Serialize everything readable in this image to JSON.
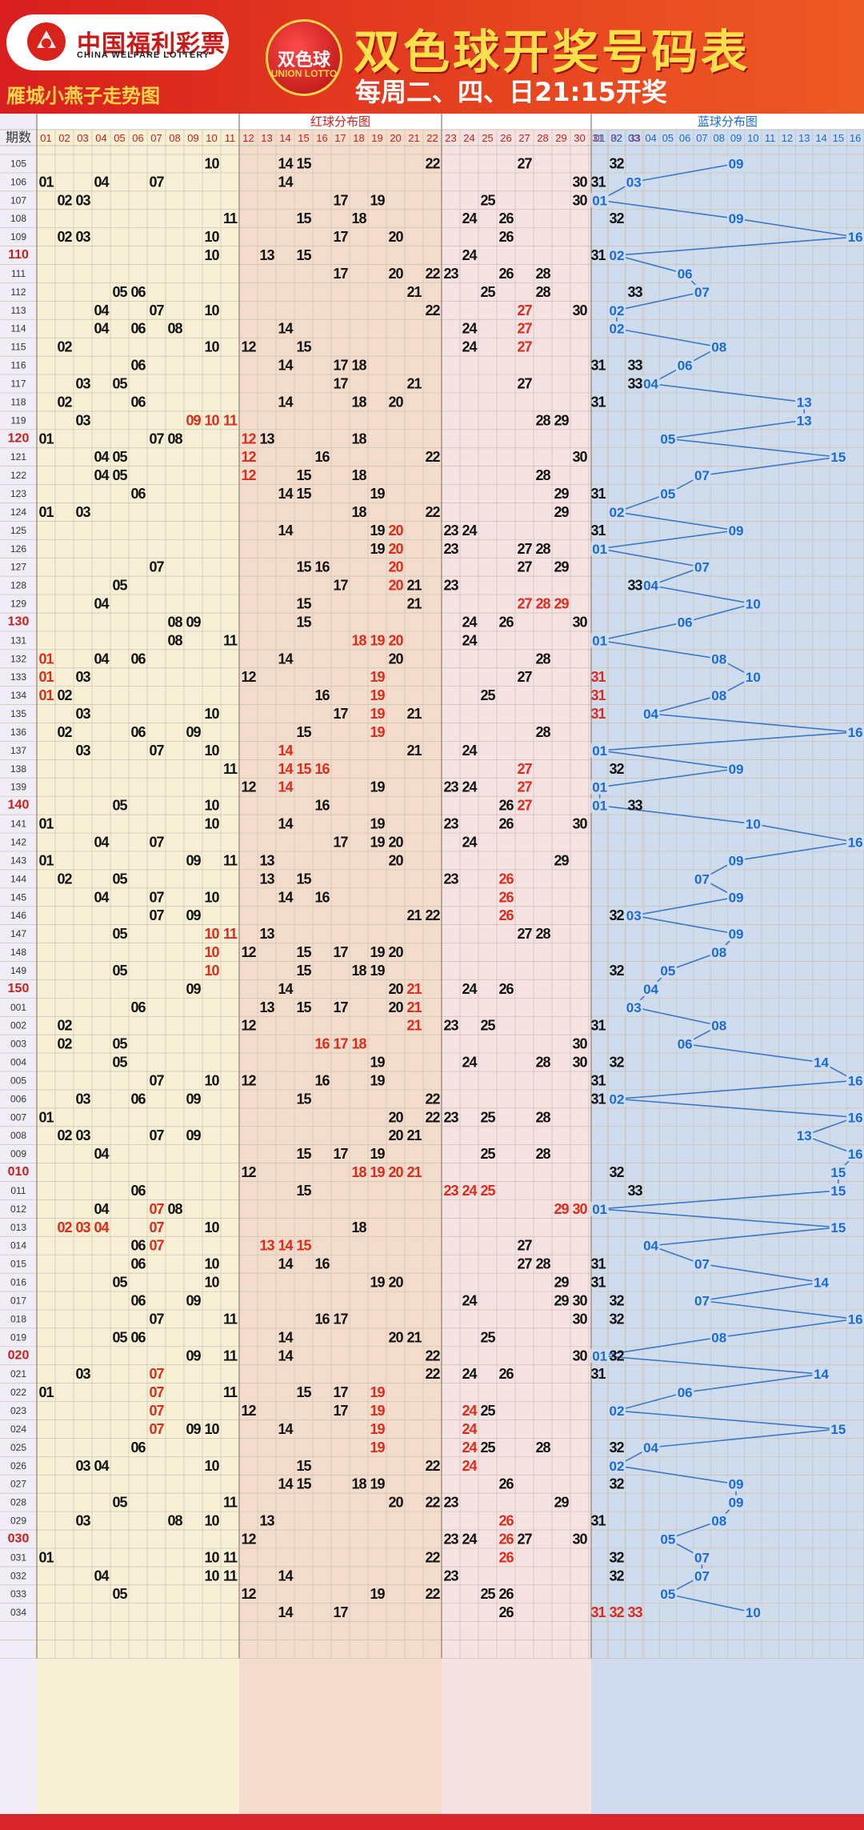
{
  "header": {
    "brand_cn": "中国福利彩票",
    "brand_en": "CHINA WELFARE LOTTERY",
    "chart_author": "雁城小燕子走势图",
    "badge_cn": "双色球",
    "badge_en": "UNION LOTTO",
    "title": "双色球开奖号码表",
    "draw_days": "每周二、四、日21:15开奖"
  },
  "colors": {
    "header_red": "#d81e1e",
    "title_yellow": "#ffe04a",
    "red_zone_1": "#f8f0d4",
    "red_zone_2": "#f4dccc",
    "red_zone_3": "#f6e2e2",
    "blue_zone": "#cfdcee",
    "repeat_red": "#e02a1a",
    "blue_ball": "#1a6bd6"
  },
  "chart_data": {
    "type": "table",
    "period_header": "期数",
    "red_section_title": "红球分布图",
    "blue_section_title": "蓝球分布图",
    "red_columns": [
      "01",
      "02",
      "03",
      "04",
      "05",
      "06",
      "07",
      "08",
      "09",
      "10",
      "11",
      "12",
      "13",
      "14",
      "15",
      "16",
      "17",
      "18",
      "19",
      "20",
      "21",
      "22",
      "23",
      "24",
      "25",
      "26",
      "27",
      "28",
      "29",
      "30",
      "31",
      "32",
      "33"
    ],
    "blue_columns": [
      "01",
      "02",
      "03",
      "04",
      "05",
      "06",
      "07",
      "08",
      "09",
      "10",
      "11",
      "12",
      "13",
      "14",
      "15",
      "16"
    ],
    "draws": [
      {
        "p": "105",
        "red": [
          10,
          14,
          15,
          22,
          27,
          32
        ],
        "hl": [],
        "blue": 9
      },
      {
        "p": "106",
        "red": [
          1,
          4,
          7,
          14,
          30,
          31
        ],
        "hl": [],
        "blue": 3
      },
      {
        "p": "107",
        "red": [
          2,
          3,
          17,
          19,
          25,
          30
        ],
        "hl": [],
        "blue": 1
      },
      {
        "p": "108",
        "red": [
          11,
          15,
          18,
          24,
          26,
          32
        ],
        "hl": [],
        "blue": 9
      },
      {
        "p": "109",
        "red": [
          2,
          3,
          10,
          17,
          20,
          26
        ],
        "hl": [],
        "blue": 16
      },
      {
        "p": "110",
        "red": [
          10,
          13,
          15,
          24,
          31,
          32
        ],
        "hl": [],
        "blue": 2
      },
      {
        "p": "111",
        "red": [
          17,
          20,
          22,
          23,
          26,
          28
        ],
        "hl": [],
        "blue": 6
      },
      {
        "p": "112",
        "red": [
          5,
          6,
          21,
          25,
          28,
          33
        ],
        "hl": [],
        "blue": 7
      },
      {
        "p": "113",
        "red": [
          4,
          7,
          10,
          22,
          27,
          30
        ],
        "hl": [
          27
        ],
        "blue": 2
      },
      {
        "p": "114",
        "red": [
          4,
          6,
          8,
          14,
          24,
          27
        ],
        "hl": [
          27
        ],
        "blue": 2
      },
      {
        "p": "115",
        "red": [
          2,
          10,
          12,
          15,
          24,
          27
        ],
        "hl": [
          27
        ],
        "blue": 8
      },
      {
        "p": "116",
        "red": [
          6,
          14,
          17,
          18,
          31,
          33
        ],
        "hl": [],
        "blue": 6
      },
      {
        "p": "117",
        "red": [
          3,
          5,
          17,
          21,
          27,
          33
        ],
        "hl": [],
        "blue": 4
      },
      {
        "p": "118",
        "red": [
          2,
          6,
          14,
          18,
          20,
          31
        ],
        "hl": [],
        "blue": 13
      },
      {
        "p": "119",
        "red": [
          3,
          9,
          10,
          11,
          28,
          29
        ],
        "hl": [
          9,
          10,
          11
        ],
        "blue": 13
      },
      {
        "p": "120",
        "red": [
          1,
          7,
          8,
          12,
          13,
          18
        ],
        "hl": [
          12
        ],
        "blue": 5
      },
      {
        "p": "121",
        "red": [
          4,
          5,
          12,
          16,
          22,
          30
        ],
        "hl": [
          12
        ],
        "blue": 15
      },
      {
        "p": "122",
        "red": [
          4,
          5,
          12,
          15,
          18,
          28
        ],
        "hl": [
          12
        ],
        "blue": 7
      },
      {
        "p": "123",
        "red": [
          6,
          14,
          15,
          19,
          29,
          31
        ],
        "hl": [],
        "blue": 5
      },
      {
        "p": "124",
        "red": [
          1,
          3,
          18,
          22,
          29,
          32
        ],
        "hl": [],
        "blue": 2
      },
      {
        "p": "125",
        "red": [
          14,
          19,
          20,
          23,
          24,
          31
        ],
        "hl": [
          20
        ],
        "blue": 9
      },
      {
        "p": "126",
        "red": [
          19,
          20,
          23,
          27,
          28,
          31
        ],
        "hl": [
          20
        ],
        "blue": 1
      },
      {
        "p": "127",
        "red": [
          7,
          15,
          16,
          20,
          27,
          29
        ],
        "hl": [
          20
        ],
        "blue": 7
      },
      {
        "p": "128",
        "red": [
          5,
          17,
          20,
          21,
          23,
          33
        ],
        "hl": [
          20
        ],
        "blue": 4
      },
      {
        "p": "129",
        "red": [
          4,
          15,
          21,
          27,
          28,
          29
        ],
        "hl": [
          27,
          28,
          29
        ],
        "blue": 10
      },
      {
        "p": "130",
        "red": [
          8,
          9,
          15,
          24,
          26,
          30
        ],
        "hl": [],
        "blue": 6
      },
      {
        "p": "131",
        "red": [
          8,
          11,
          18,
          19,
          20,
          24
        ],
        "hl": [
          18,
          19,
          20
        ],
        "blue": 1
      },
      {
        "p": "132",
        "red": [
          1,
          4,
          6,
          14,
          20,
          28
        ],
        "hl": [
          1
        ],
        "blue": 8
      },
      {
        "p": "133",
        "red": [
          1,
          3,
          12,
          19,
          27,
          31
        ],
        "hl": [
          1,
          19,
          31
        ],
        "blue": 10
      },
      {
        "p": "134",
        "red": [
          1,
          2,
          16,
          19,
          25,
          31
        ],
        "hl": [
          1,
          19,
          31
        ],
        "blue": 8
      },
      {
        "p": "135",
        "red": [
          3,
          10,
          17,
          19,
          21,
          31
        ],
        "hl": [
          19,
          31
        ],
        "blue": 4
      },
      {
        "p": "136",
        "red": [
          2,
          6,
          9,
          15,
          19,
          28
        ],
        "hl": [
          19
        ],
        "blue": 16
      },
      {
        "p": "137",
        "red": [
          3,
          7,
          10,
          14,
          21,
          24
        ],
        "hl": [
          14
        ],
        "blue": 1
      },
      {
        "p": "138",
        "red": [
          11,
          14,
          15,
          16,
          27,
          32
        ],
        "hl": [
          14,
          15,
          16,
          27
        ],
        "blue": 9
      },
      {
        "p": "139",
        "red": [
          12,
          14,
          19,
          23,
          24,
          27
        ],
        "hl": [
          14,
          27
        ],
        "blue": 1
      },
      {
        "p": "140",
        "red": [
          5,
          10,
          16,
          26,
          27,
          33
        ],
        "hl": [
          27
        ],
        "blue": 1
      },
      {
        "p": "141",
        "red": [
          1,
          10,
          14,
          19,
          23,
          26,
          30
        ],
        "hl": [],
        "blue": 10
      },
      {
        "p": "142",
        "red": [
          4,
          7,
          17,
          19,
          20,
          24
        ],
        "hl": [],
        "blue": 16
      },
      {
        "p": "143",
        "red": [
          1,
          9,
          11,
          13,
          20,
          29
        ],
        "hl": [],
        "blue": 9
      },
      {
        "p": "144",
        "red": [
          2,
          5,
          13,
          15,
          23,
          26
        ],
        "hl": [
          26
        ],
        "blue": 7
      },
      {
        "p": "145",
        "red": [
          4,
          7,
          10,
          14,
          16,
          26
        ],
        "hl": [
          26
        ],
        "blue": 9
      },
      {
        "p": "146",
        "red": [
          7,
          9,
          21,
          22,
          26,
          32
        ],
        "hl": [
          26
        ],
        "blue": 3
      },
      {
        "p": "147",
        "red": [
          5,
          10,
          11,
          13,
          27,
          28
        ],
        "hl": [
          10,
          11
        ],
        "blue": 9
      },
      {
        "p": "148",
        "red": [
          10,
          12,
          15,
          17,
          19,
          20
        ],
        "hl": [
          10
        ],
        "blue": 8
      },
      {
        "p": "149",
        "red": [
          5,
          10,
          15,
          18,
          19,
          32
        ],
        "hl": [
          10
        ],
        "blue": 5
      },
      {
        "p": "150",
        "red": [
          9,
          14,
          20,
          21,
          24,
          26
        ],
        "hl": [
          21
        ],
        "blue": 4
      },
      {
        "p": "001",
        "red": [
          6,
          13,
          15,
          17,
          20,
          21
        ],
        "hl": [
          21
        ],
        "blue": 3
      },
      {
        "p": "002",
        "red": [
          2,
          12,
          21,
          23,
          25,
          31
        ],
        "hl": [
          21
        ],
        "blue": 8
      },
      {
        "p": "003",
        "red": [
          2,
          5,
          16,
          17,
          18,
          30
        ],
        "hl": [
          16,
          17,
          18
        ],
        "blue": 6
      },
      {
        "p": "004",
        "red": [
          5,
          19,
          24,
          28,
          30,
          32
        ],
        "hl": [],
        "blue": 14
      },
      {
        "p": "005",
        "red": [
          7,
          10,
          12,
          16,
          19,
          31
        ],
        "hl": [],
        "blue": 16
      },
      {
        "p": "006",
        "red": [
          3,
          6,
          9,
          15,
          22,
          31
        ],
        "hl": [],
        "blue": 2
      },
      {
        "p": "007",
        "red": [
          1,
          20,
          22,
          23,
          25,
          28
        ],
        "hl": [],
        "blue": 16
      },
      {
        "p": "008",
        "red": [
          2,
          3,
          7,
          9,
          20,
          21
        ],
        "hl": [],
        "blue": 13
      },
      {
        "p": "009",
        "red": [
          4,
          15,
          17,
          19,
          25,
          28
        ],
        "hl": [],
        "blue": 16
      },
      {
        "p": "010",
        "red": [
          12,
          18,
          19,
          20,
          21,
          32
        ],
        "hl": [
          18,
          19,
          20,
          21
        ],
        "blue": 15
      },
      {
        "p": "011",
        "red": [
          6,
          15,
          23,
          24,
          25,
          33
        ],
        "hl": [
          23,
          24,
          25
        ],
        "blue": 15
      },
      {
        "p": "012",
        "red": [
          4,
          7,
          8,
          29,
          30,
          31
        ],
        "hl": [
          7,
          29,
          30,
          31
        ],
        "blue": 1
      },
      {
        "p": "013",
        "red": [
          2,
          3,
          4,
          7,
          10,
          18
        ],
        "hl": [
          2,
          3,
          4,
          7
        ],
        "blue": 15
      },
      {
        "p": "014",
        "red": [
          6,
          7,
          13,
          14,
          15,
          27
        ],
        "hl": [
          7,
          13,
          14,
          15
        ],
        "blue": 4
      },
      {
        "p": "015",
        "red": [
          6,
          10,
          14,
          16,
          27,
          28,
          31
        ],
        "hl": [],
        "blue": 7
      },
      {
        "p": "016",
        "red": [
          5,
          10,
          19,
          20,
          29,
          31
        ],
        "hl": [],
        "blue": 14
      },
      {
        "p": "017",
        "red": [
          6,
          9,
          24,
          29,
          30,
          32
        ],
        "hl": [],
        "blue": 7
      },
      {
        "p": "018",
        "red": [
          7,
          11,
          16,
          17,
          30,
          32
        ],
        "hl": [],
        "blue": 16
      },
      {
        "p": "019",
        "red": [
          5,
          6,
          14,
          20,
          21,
          25
        ],
        "hl": [],
        "blue": 8
      },
      {
        "p": "020",
        "red": [
          9,
          11,
          14,
          22,
          30,
          32
        ],
        "hl": [],
        "blue": 1
      },
      {
        "p": "021",
        "red": [
          3,
          7,
          22,
          24,
          26,
          31
        ],
        "hl": [
          7
        ],
        "blue": 14
      },
      {
        "p": "022",
        "red": [
          1,
          7,
          11,
          15,
          17,
          19
        ],
        "hl": [
          7,
          19
        ],
        "blue": 6
      },
      {
        "p": "023",
        "red": [
          7,
          12,
          17,
          19,
          24,
          25
        ],
        "hl": [
          7,
          19,
          24
        ],
        "blue": 2
      },
      {
        "p": "024",
        "red": [
          7,
          9,
          10,
          14,
          19,
          24
        ],
        "hl": [
          7,
          19,
          24
        ],
        "blue": 15
      },
      {
        "p": "025",
        "red": [
          6,
          19,
          24,
          25,
          28,
          32
        ],
        "hl": [
          19,
          24
        ],
        "blue": 4
      },
      {
        "p": "026",
        "red": [
          3,
          4,
          10,
          15,
          22,
          24
        ],
        "hl": [
          24
        ],
        "blue": 2
      },
      {
        "p": "027",
        "red": [
          14,
          15,
          18,
          19,
          26,
          32
        ],
        "hl": [],
        "blue": 9
      },
      {
        "p": "028",
        "red": [
          5,
          11,
          20,
          22,
          23,
          29
        ],
        "hl": [],
        "blue": 9
      },
      {
        "p": "029",
        "red": [
          3,
          8,
          10,
          13,
          26,
          31
        ],
        "hl": [
          26
        ],
        "blue": 8
      },
      {
        "p": "030",
        "red": [
          12,
          23,
          24,
          26,
          27,
          30
        ],
        "hl": [
          26
        ],
        "blue": 5
      },
      {
        "p": "031",
        "red": [
          1,
          10,
          11,
          22,
          26,
          32
        ],
        "hl": [
          26
        ],
        "blue": 7
      },
      {
        "p": "032",
        "red": [
          4,
          10,
          11,
          14,
          23,
          32
        ],
        "hl": [],
        "blue": 7
      },
      {
        "p": "033",
        "red": [
          5,
          12,
          19,
          22,
          25,
          26
        ],
        "hl": [],
        "blue": 5
      },
      {
        "p": "034",
        "red": [
          14,
          17,
          26,
          31,
          32,
          33
        ],
        "hl": [
          31,
          32,
          33
        ],
        "blue": 10
      }
    ],
    "red_period_labels": [
      "110",
      "120",
      "130",
      "140",
      "150",
      "010",
      "020",
      "030"
    ]
  }
}
